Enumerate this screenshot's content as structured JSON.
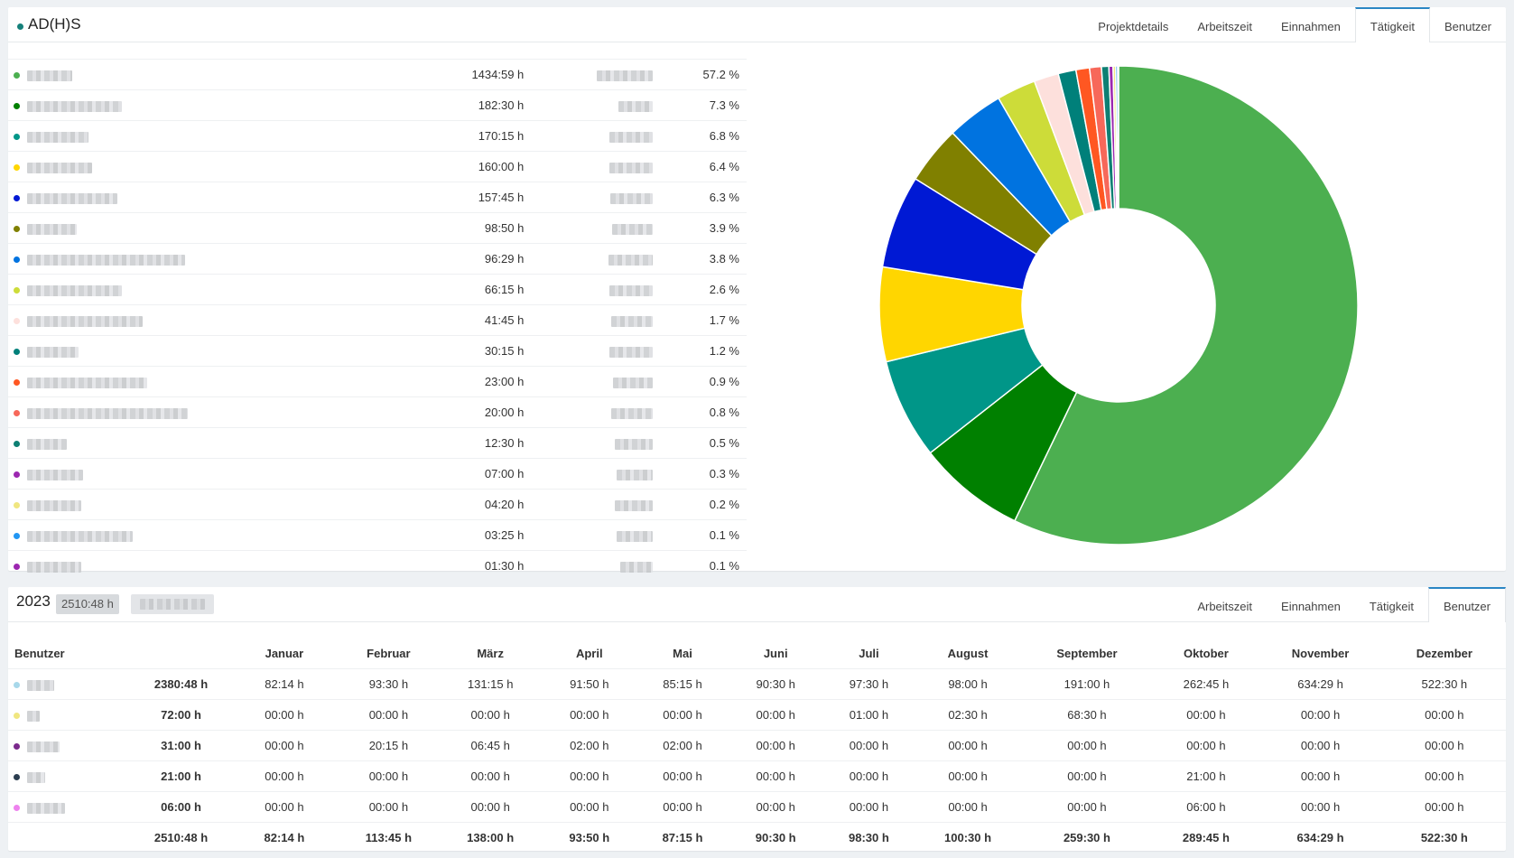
{
  "top_panel": {
    "title": "AD(H)S",
    "title_dot_color": "#15807a",
    "tabs": [
      {
        "label": "Projektdetails",
        "active": false
      },
      {
        "label": "Arbeitszeit",
        "active": false
      },
      {
        "label": "Einnahmen",
        "active": false
      },
      {
        "label": "Tätigkeit",
        "active": true
      },
      {
        "label": "Benutzer",
        "active": false
      }
    ]
  },
  "activities": [
    {
      "color": "#4caf50",
      "hours": "1434:59 h",
      "percent": "57.2 %"
    },
    {
      "color": "#008000",
      "hours": "182:30 h",
      "percent": "7.3 %"
    },
    {
      "color": "#009688",
      "hours": "170:15 h",
      "percent": "6.8 %"
    },
    {
      "color": "#ffd600",
      "hours": "160:00 h",
      "percent": "6.4 %"
    },
    {
      "color": "#0019d4",
      "hours": "157:45 h",
      "percent": "6.3 %"
    },
    {
      "color": "#808000",
      "hours": "98:50 h",
      "percent": "3.9 %"
    },
    {
      "color": "#0073e0",
      "hours": "96:29 h",
      "percent": "3.8 %"
    },
    {
      "color": "#cddc39",
      "hours": "66:15 h",
      "percent": "2.6 %"
    },
    {
      "color": "#fde0dc",
      "hours": "41:45 h",
      "percent": "1.7 %"
    },
    {
      "color": "#00807a",
      "hours": "30:15 h",
      "percent": "1.2 %"
    },
    {
      "color": "#ff5722",
      "hours": "23:00 h",
      "percent": "0.9 %"
    },
    {
      "color": "#f7685a",
      "hours": "20:00 h",
      "percent": "0.8 %"
    },
    {
      "color": "#0e7f73",
      "hours": "12:30 h",
      "percent": "0.5 %"
    },
    {
      "color": "#9c27b0",
      "hours": "07:00 h",
      "percent": "0.3 %"
    },
    {
      "color": "#f0e680",
      "hours": "04:20 h",
      "percent": "0.2 %"
    },
    {
      "color": "#2196f3",
      "hours": "03:25 h",
      "percent": "0.1 %"
    },
    {
      "color": "#9c27b0",
      "hours": "01:30 h",
      "percent": "0.1 %"
    }
  ],
  "chart_data": {
    "type": "pie",
    "donut": true,
    "values": [
      1434.98,
      182.5,
      170.25,
      160.0,
      157.75,
      98.83,
      96.48,
      66.25,
      41.75,
      30.25,
      23.0,
      20.0,
      12.5,
      7.0,
      4.33,
      3.42,
      1.5
    ],
    "colors": [
      "#4caf50",
      "#008000",
      "#009688",
      "#ffd600",
      "#0019d4",
      "#808000",
      "#0073e0",
      "#cddc39",
      "#fde0dc",
      "#00807a",
      "#ff5722",
      "#f7685a",
      "#0e7f73",
      "#9c27b0",
      "#f0e680",
      "#2196f3",
      "#9c27b0"
    ],
    "legend": "none"
  },
  "bottom_panel": {
    "year": "2023",
    "total": "2510:48 h",
    "tabs": [
      {
        "label": "Arbeitszeit",
        "active": false
      },
      {
        "label": "Einnahmen",
        "active": false
      },
      {
        "label": "Tätigkeit",
        "active": false
      },
      {
        "label": "Benutzer",
        "active": true
      }
    ]
  },
  "users_table": {
    "headers": [
      "Benutzer",
      "",
      "Januar",
      "Februar",
      "März",
      "April",
      "Mai",
      "Juni",
      "Juli",
      "August",
      "September",
      "Oktober",
      "November",
      "Dezember"
    ],
    "rows": [
      {
        "color": "#a8d8ea",
        "total": "2380:48 h",
        "months": [
          "82:14 h",
          "93:30 h",
          "131:15 h",
          "91:50 h",
          "85:15 h",
          "90:30 h",
          "97:30 h",
          "98:00 h",
          "191:00 h",
          "262:45 h",
          "634:29 h",
          "522:30 h"
        ]
      },
      {
        "color": "#f0e680",
        "total": "72:00 h",
        "months": [
          "00:00 h",
          "00:00 h",
          "00:00 h",
          "00:00 h",
          "00:00 h",
          "00:00 h",
          "01:00 h",
          "02:30 h",
          "68:30 h",
          "00:00 h",
          "00:00 h",
          "00:00 h"
        ]
      },
      {
        "color": "#7b2a8c",
        "total": "31:00 h",
        "months": [
          "00:00 h",
          "20:15 h",
          "06:45 h",
          "02:00 h",
          "02:00 h",
          "00:00 h",
          "00:00 h",
          "00:00 h",
          "00:00 h",
          "00:00 h",
          "00:00 h",
          "00:00 h"
        ]
      },
      {
        "color": "#2c3e50",
        "total": "21:00 h",
        "months": [
          "00:00 h",
          "00:00 h",
          "00:00 h",
          "00:00 h",
          "00:00 h",
          "00:00 h",
          "00:00 h",
          "00:00 h",
          "00:00 h",
          "21:00 h",
          "00:00 h",
          "00:00 h"
        ]
      },
      {
        "color": "#ee82ee",
        "total": "06:00 h",
        "months": [
          "00:00 h",
          "00:00 h",
          "00:00 h",
          "00:00 h",
          "00:00 h",
          "00:00 h",
          "00:00 h",
          "00:00 h",
          "00:00 h",
          "06:00 h",
          "00:00 h",
          "00:00 h"
        ]
      }
    ],
    "sum_row": {
      "total": "2510:48 h",
      "months": [
        "82:14 h",
        "113:45 h",
        "138:00 h",
        "93:50 h",
        "87:15 h",
        "90:30 h",
        "98:30 h",
        "100:30 h",
        "259:30 h",
        "289:45 h",
        "634:29 h",
        "522:30 h"
      ]
    }
  }
}
